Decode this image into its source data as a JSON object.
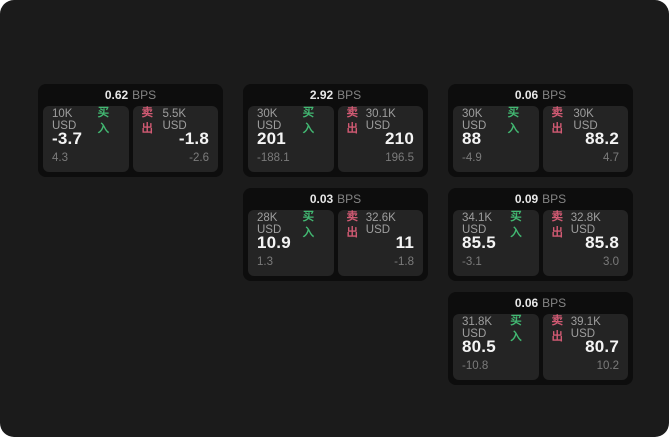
{
  "labels": {
    "bps": "BPS",
    "buy": "买入",
    "sell": "卖出"
  },
  "colors": {
    "buy": "#42b872",
    "sell": "#d15a73",
    "window_bg": "#1b1b1b",
    "card_bg": "#0d0d0d",
    "panel_bg": "#242424"
  },
  "cards": [
    {
      "col": 1,
      "row": 1,
      "bps": "0.62",
      "buy": {
        "amount": "10K USD",
        "price": "-3.7",
        "delta": "4.3"
      },
      "sell": {
        "amount": "5.5K USD",
        "price": "-1.8",
        "delta": "-2.6"
      }
    },
    {
      "col": 2,
      "row": 1,
      "bps": "2.92",
      "buy": {
        "amount": "30K USD",
        "price": "201",
        "delta": "-188.1"
      },
      "sell": {
        "amount": "30.1K USD",
        "price": "210",
        "delta": "196.5"
      }
    },
    {
      "col": 3,
      "row": 1,
      "bps": "0.06",
      "buy": {
        "amount": "30K USD",
        "price": "88",
        "delta": "-4.9"
      },
      "sell": {
        "amount": "30K USD",
        "price": "88.2",
        "delta": "4.7"
      }
    },
    {
      "col": 2,
      "row": 2,
      "bps": "0.03",
      "buy": {
        "amount": "28K USD",
        "price": "10.9",
        "delta": "1.3"
      },
      "sell": {
        "amount": "32.6K USD",
        "price": "11",
        "delta": "-1.8"
      }
    },
    {
      "col": 3,
      "row": 2,
      "bps": "0.09",
      "buy": {
        "amount": "34.1K USD",
        "price": "85.5",
        "delta": "-3.1"
      },
      "sell": {
        "amount": "32.8K USD",
        "price": "85.8",
        "delta": "3.0"
      }
    },
    {
      "col": 3,
      "row": 3,
      "bps": "0.06",
      "buy": {
        "amount": "31.8K USD",
        "price": "80.5",
        "delta": "-10.8"
      },
      "sell": {
        "amount": "39.1K USD",
        "price": "80.7",
        "delta": "10.2"
      }
    }
  ]
}
